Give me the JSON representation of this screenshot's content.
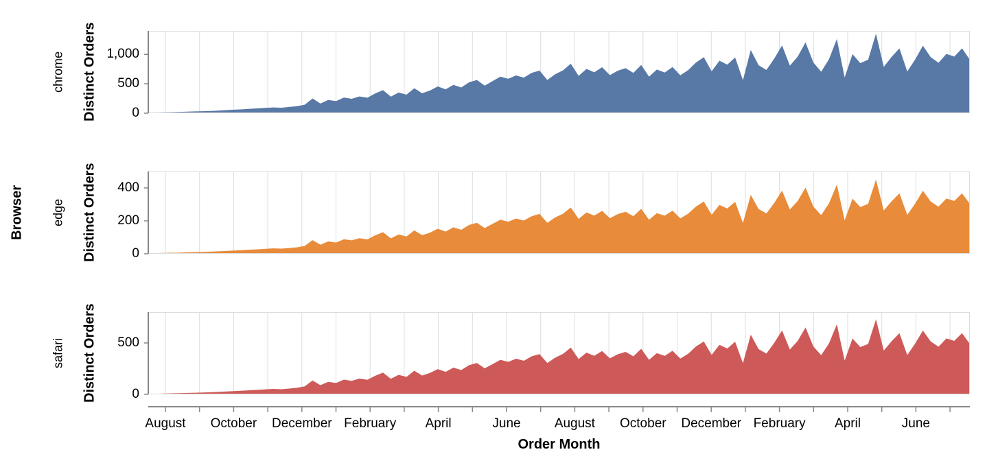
{
  "chart_data": {
    "type": "area",
    "layout": "faceted-rows",
    "facet_title": "Browser",
    "x_title": "Order Month",
    "y_title": "Distinct Orders",
    "x_unit": "week",
    "x_months_total": 24,
    "grid": "vertical-monthly",
    "x_tick_labels": [
      "August",
      "October",
      "December",
      "February",
      "April",
      "June",
      "August",
      "October",
      "December",
      "February",
      "April",
      "June"
    ],
    "colors": {
      "grid": "#dcdcdc",
      "border": "#dcdcdc",
      "axis": "#888888",
      "text": "#000000",
      "background": "#ffffff"
    },
    "facets": [
      {
        "label": "chrome",
        "color": "#5878a6",
        "y_domain": [
          0,
          1400
        ],
        "y_ticks": [
          0,
          500,
          1000
        ],
        "y_tick_labels": [
          "0",
          "500",
          "1,000"
        ],
        "values": [
          8,
          12,
          14,
          18,
          22,
          26,
          30,
          34,
          38,
          44,
          52,
          60,
          66,
          74,
          82,
          90,
          98,
          92,
          106,
          118,
          145,
          250,
          165,
          225,
          205,
          265,
          245,
          285,
          262,
          335,
          392,
          282,
          352,
          315,
          425,
          338,
          385,
          455,
          405,
          482,
          438,
          525,
          565,
          468,
          545,
          622,
          585,
          642,
          605,
          685,
          725,
          565,
          662,
          728,
          842,
          635,
          752,
          695,
          782,
          648,
          722,
          765,
          685,
          820,
          622,
          742,
          692,
          785,
          645,
          732,
          862,
          952,
          712,
          892,
          825,
          948,
          562,
          1075,
          815,
          735,
          928,
          1152,
          808,
          962,
          1205,
          862,
          705,
          918,
          1262,
          608,
          1005,
          852,
          908,
          1352,
          788,
          958,
          1102,
          708,
          912,
          1148,
          952,
          858,
          1008,
          962,
          1102,
          908
        ]
      },
      {
        "label": "edge",
        "color": "#e88b3a",
        "y_domain": [
          0,
          500
        ],
        "y_ticks": [
          0,
          200,
          400
        ],
        "y_tick_labels": [
          "0",
          "200",
          "400"
        ],
        "values": [
          3,
          4,
          5,
          6,
          7,
          9,
          10,
          11,
          13,
          15,
          17,
          20,
          22,
          25,
          27,
          30,
          33,
          31,
          35,
          39,
          48,
          83,
          55,
          75,
          68,
          88,
          82,
          95,
          87,
          112,
          131,
          94,
          117,
          105,
          142,
          113,
          128,
          152,
          135,
          161,
          146,
          175,
          188,
          156,
          182,
          207,
          195,
          214,
          202,
          228,
          242,
          188,
          221,
          243,
          281,
          212,
          251,
          232,
          261,
          216,
          241,
          255,
          228,
          273,
          207,
          247,
          231,
          262,
          215,
          244,
          287,
          317,
          237,
          297,
          275,
          316,
          187,
          358,
          272,
          245,
          309,
          384,
          269,
          321,
          402,
          287,
          235,
          306,
          421,
          203,
          335,
          284,
          303,
          451,
          263,
          319,
          367,
          236,
          304,
          383,
          317,
          286,
          336,
          321,
          367,
          303
        ]
      },
      {
        "label": "safari",
        "color": "#cd5a58",
        "y_domain": [
          0,
          800
        ],
        "y_ticks": [
          0,
          500
        ],
        "y_tick_labels": [
          "0",
          "500"
        ],
        "values": [
          4,
          6,
          8,
          10,
          12,
          14,
          16,
          18,
          21,
          24,
          28,
          32,
          36,
          40,
          44,
          49,
          53,
          50,
          57,
          64,
          78,
          135,
          89,
          122,
          111,
          143,
          132,
          154,
          142,
          181,
          212,
          152,
          190,
          170,
          230,
          183,
          208,
          246,
          219,
          260,
          237,
          284,
          305,
          253,
          294,
          336,
          316,
          347,
          327,
          370,
          392,
          305,
          357,
          393,
          455,
          343,
          406,
          375,
          422,
          350,
          390,
          413,
          370,
          443,
          336,
          401,
          374,
          424,
          348,
          395,
          466,
          514,
          384,
          482,
          446,
          512,
          303,
          581,
          440,
          397,
          501,
          622,
          436,
          520,
          651,
          466,
          381,
          496,
          682,
          328,
          543,
          460,
          490,
          730,
          426,
          517,
          595,
          382,
          493,
          620,
          514,
          463,
          544,
          520,
          595,
          490
        ]
      }
    ]
  }
}
